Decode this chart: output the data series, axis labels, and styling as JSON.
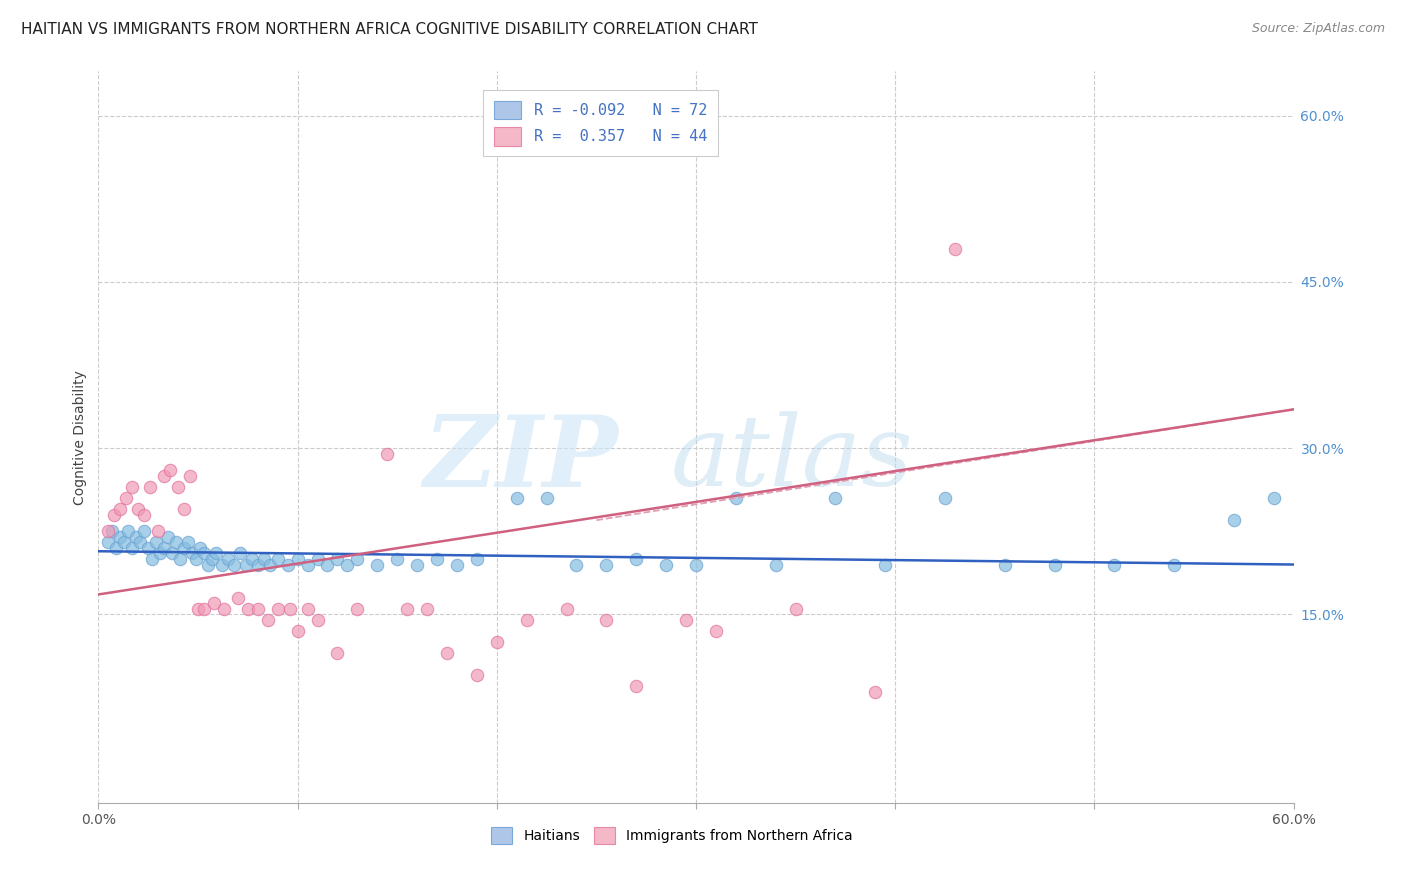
{
  "title": "HAITIAN VS IMMIGRANTS FROM NORTHERN AFRICA COGNITIVE DISABILITY CORRELATION CHART",
  "source": "Source: ZipAtlas.com",
  "ylabel": "Cognitive Disability",
  "xlim": [
    0.0,
    0.6
  ],
  "ylim": [
    -0.02,
    0.64
  ],
  "ytick_labels": [
    "15.0%",
    "30.0%",
    "45.0%",
    "60.0%"
  ],
  "ytick_values": [
    0.15,
    0.3,
    0.45,
    0.6
  ],
  "xtick_values": [
    0.0,
    0.1,
    0.2,
    0.3,
    0.4,
    0.5,
    0.6
  ],
  "legend_labels": [
    "Haitians",
    "Immigrants from Northern Africa"
  ],
  "blue_scatter": [
    [
      0.005,
      0.215
    ],
    [
      0.007,
      0.225
    ],
    [
      0.009,
      0.21
    ],
    [
      0.011,
      0.22
    ],
    [
      0.013,
      0.215
    ],
    [
      0.015,
      0.225
    ],
    [
      0.017,
      0.21
    ],
    [
      0.019,
      0.22
    ],
    [
      0.021,
      0.215
    ],
    [
      0.023,
      0.225
    ],
    [
      0.025,
      0.21
    ],
    [
      0.027,
      0.2
    ],
    [
      0.029,
      0.215
    ],
    [
      0.031,
      0.205
    ],
    [
      0.033,
      0.21
    ],
    [
      0.035,
      0.22
    ],
    [
      0.037,
      0.205
    ],
    [
      0.039,
      0.215
    ],
    [
      0.041,
      0.2
    ],
    [
      0.043,
      0.21
    ],
    [
      0.045,
      0.215
    ],
    [
      0.047,
      0.205
    ],
    [
      0.049,
      0.2
    ],
    [
      0.051,
      0.21
    ],
    [
      0.053,
      0.205
    ],
    [
      0.055,
      0.195
    ],
    [
      0.057,
      0.2
    ],
    [
      0.059,
      0.205
    ],
    [
      0.062,
      0.195
    ],
    [
      0.065,
      0.2
    ],
    [
      0.068,
      0.195
    ],
    [
      0.071,
      0.205
    ],
    [
      0.074,
      0.195
    ],
    [
      0.077,
      0.2
    ],
    [
      0.08,
      0.195
    ],
    [
      0.083,
      0.2
    ],
    [
      0.086,
      0.195
    ],
    [
      0.09,
      0.2
    ],
    [
      0.095,
      0.195
    ],
    [
      0.1,
      0.2
    ],
    [
      0.105,
      0.195
    ],
    [
      0.11,
      0.2
    ],
    [
      0.115,
      0.195
    ],
    [
      0.12,
      0.2
    ],
    [
      0.125,
      0.195
    ],
    [
      0.13,
      0.2
    ],
    [
      0.14,
      0.195
    ],
    [
      0.15,
      0.2
    ],
    [
      0.16,
      0.195
    ],
    [
      0.17,
      0.2
    ],
    [
      0.18,
      0.195
    ],
    [
      0.19,
      0.2
    ],
    [
      0.21,
      0.255
    ],
    [
      0.225,
      0.255
    ],
    [
      0.24,
      0.195
    ],
    [
      0.255,
      0.195
    ],
    [
      0.27,
      0.2
    ],
    [
      0.285,
      0.195
    ],
    [
      0.3,
      0.195
    ],
    [
      0.32,
      0.255
    ],
    [
      0.34,
      0.195
    ],
    [
      0.37,
      0.255
    ],
    [
      0.395,
      0.195
    ],
    [
      0.425,
      0.255
    ],
    [
      0.455,
      0.195
    ],
    [
      0.48,
      0.195
    ],
    [
      0.51,
      0.195
    ],
    [
      0.54,
      0.195
    ],
    [
      0.57,
      0.235
    ],
    [
      0.59,
      0.255
    ]
  ],
  "pink_scatter": [
    [
      0.005,
      0.225
    ],
    [
      0.008,
      0.24
    ],
    [
      0.011,
      0.245
    ],
    [
      0.014,
      0.255
    ],
    [
      0.017,
      0.265
    ],
    [
      0.02,
      0.245
    ],
    [
      0.023,
      0.24
    ],
    [
      0.026,
      0.265
    ],
    [
      0.03,
      0.225
    ],
    [
      0.033,
      0.275
    ],
    [
      0.036,
      0.28
    ],
    [
      0.04,
      0.265
    ],
    [
      0.043,
      0.245
    ],
    [
      0.046,
      0.275
    ],
    [
      0.05,
      0.155
    ],
    [
      0.053,
      0.155
    ],
    [
      0.058,
      0.16
    ],
    [
      0.063,
      0.155
    ],
    [
      0.07,
      0.165
    ],
    [
      0.075,
      0.155
    ],
    [
      0.08,
      0.155
    ],
    [
      0.085,
      0.145
    ],
    [
      0.09,
      0.155
    ],
    [
      0.096,
      0.155
    ],
    [
      0.1,
      0.135
    ],
    [
      0.105,
      0.155
    ],
    [
      0.11,
      0.145
    ],
    [
      0.12,
      0.115
    ],
    [
      0.13,
      0.155
    ],
    [
      0.145,
      0.295
    ],
    [
      0.155,
      0.155
    ],
    [
      0.165,
      0.155
    ],
    [
      0.175,
      0.115
    ],
    [
      0.19,
      0.095
    ],
    [
      0.2,
      0.125
    ],
    [
      0.215,
      0.145
    ],
    [
      0.235,
      0.155
    ],
    [
      0.255,
      0.145
    ],
    [
      0.27,
      0.085
    ],
    [
      0.295,
      0.145
    ],
    [
      0.31,
      0.135
    ],
    [
      0.35,
      0.155
    ],
    [
      0.39,
      0.08
    ],
    [
      0.43,
      0.48
    ]
  ],
  "blue_line_x": [
    0.0,
    0.6
  ],
  "blue_line_y": [
    0.207,
    0.195
  ],
  "pink_line_x": [
    0.0,
    0.6
  ],
  "pink_line_y": [
    0.168,
    0.335
  ],
  "pink_dashed_line_x": [
    0.25,
    0.6
  ],
  "pink_dashed_line_y": [
    0.235,
    0.335
  ],
  "blue_color": "#85bde0",
  "pink_color": "#f09ab5",
  "blue_scatter_edge": "#6aA0d0",
  "pink_scatter_edge": "#e070A0",
  "blue_line_color": "#3060c0",
  "pink_line_color": "#d06080",
  "pink_dashed_color": "#e0a0b5",
  "background_color": "#ffffff",
  "grid_color": "#cccccc",
  "title_fontsize": 11,
  "axis_label_fontsize": 10,
  "tick_fontsize": 10,
  "right_tick_color": "#5090d0"
}
